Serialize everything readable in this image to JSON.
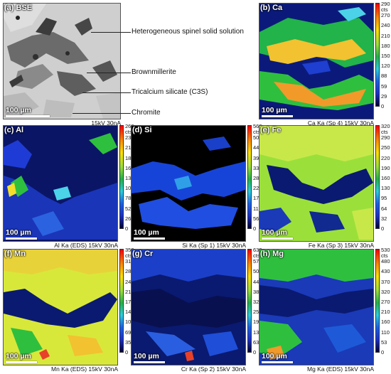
{
  "bse": {
    "label": "(a) BSE",
    "scale": "100 µm",
    "caption": "15kV 30nA",
    "annotations": [
      "Heterogeneous spinel solid solution",
      "Brownmillerite",
      "Tricalcium silicate (C3S)",
      "Chromite"
    ]
  },
  "maps": [
    {
      "label": "(b) Ca",
      "scale": "100 µm",
      "caption": "Ca Ka (Sp 4)  15kV 30nA",
      "unit": "cts",
      "ticks": [
        "290",
        "270",
        "240",
        "210",
        "180",
        "150",
        "120",
        "88",
        "59",
        "29",
        "0"
      ]
    },
    {
      "label": "(c) Al",
      "scale": "100 µm",
      "caption": "Al Ka (EDS)  15kV 30nA",
      "unit": "cts",
      "ticks": [
        "260",
        "230",
        "210",
        "180",
        "160",
        "130",
        "100",
        "78",
        "52",
        "26",
        "0"
      ]
    },
    {
      "label": "(d) Si",
      "scale": "100 µm",
      "caption": "Si Ka (Sp 1)  15kV 30nA",
      "unit": "cts",
      "ticks": [
        "560",
        "500",
        "440",
        "390",
        "330",
        "280",
        "220",
        "170",
        "110",
        "56",
        "0"
      ]
    },
    {
      "label": "(e) Fe",
      "scale": "100 µm",
      "caption": "Fe Ka (Sp 3)  15kV 30nA",
      "unit": "cts",
      "ticks": [
        "320",
        "290",
        "250",
        "220",
        "190",
        "160",
        "130",
        "95",
        "64",
        "32",
        "0"
      ]
    },
    {
      "label": "(f) Mn",
      "scale": "100 µm",
      "caption": "Mn Ka (EDS)  15kV 30nA",
      "unit": "cts",
      "ticks": [
        "350",
        "310",
        "280",
        "240",
        "210",
        "170",
        "140",
        "100",
        "69",
        "35",
        "0"
      ]
    },
    {
      "label": "(g) Cr",
      "scale": "100 µm",
      "caption": "Cr Ka (Sp 2)  15kV 30nA",
      "unit": "cts",
      "ticks": [
        "630",
        "570",
        "500",
        "440",
        "380",
        "320",
        "250",
        "190",
        "130",
        "63",
        "0"
      ]
    },
    {
      "label": "(h) Mg",
      "scale": "100 µm",
      "caption": "Mg Ka (EDS)  15kV 30nA",
      "unit": "cts",
      "ticks": [
        "530",
        "480",
        "430",
        "370",
        "320",
        "270",
        "210",
        "160",
        "110",
        "53",
        "0"
      ]
    }
  ]
}
